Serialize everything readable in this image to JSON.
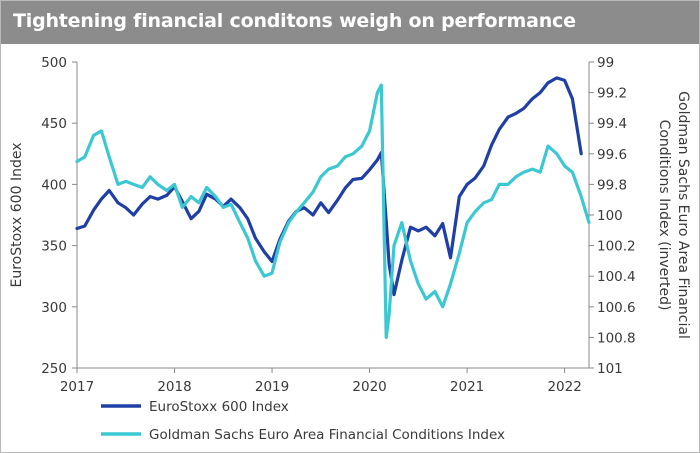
{
  "header": {
    "title": "Tightening financial conditons weigh on performance",
    "background": "#8c8c8c"
  },
  "chart_data": {
    "type": "line",
    "title": "Tightening financial conditons weigh on performance",
    "xlabel": "",
    "ylabel": "EuroStoxx 600 Index",
    "y2label": "Goldman Sachs Euro Area Financial Conditions Index (inverted)",
    "xlim": [
      2017,
      2022.25
    ],
    "ylim": [
      250,
      500
    ],
    "y2lim": [
      101,
      99
    ],
    "y2_inverted": true,
    "x_ticks": [
      "2017",
      "2018",
      "2019",
      "2020",
      "2021",
      "2022"
    ],
    "y_ticks": [
      "250",
      "300",
      "350",
      "400",
      "450",
      "500"
    ],
    "y2_ticks": [
      "99",
      "99.2",
      "99.4",
      "99.6",
      "99.8",
      "100",
      "100.2",
      "100.4",
      "100.6",
      "100.8",
      "101"
    ],
    "legend_position": "bottom",
    "grid": false,
    "series": [
      {
        "name": "EuroStoxx 600 Index",
        "axis": "left",
        "color": "#1f3fa6",
        "x": [
          2017.0,
          2017.08,
          2017.17,
          2017.25,
          2017.33,
          2017.42,
          2017.5,
          2017.58,
          2017.67,
          2017.75,
          2017.83,
          2017.92,
          2018.0,
          2018.08,
          2018.17,
          2018.25,
          2018.33,
          2018.42,
          2018.5,
          2018.58,
          2018.67,
          2018.75,
          2018.83,
          2018.92,
          2019.0,
          2019.08,
          2019.17,
          2019.25,
          2019.33,
          2019.42,
          2019.5,
          2019.58,
          2019.67,
          2019.75,
          2019.83,
          2019.92,
          2020.0,
          2020.08,
          2020.12,
          2020.17,
          2020.2,
          2020.25,
          2020.33,
          2020.42,
          2020.5,
          2020.58,
          2020.67,
          2020.75,
          2020.83,
          2020.92,
          2021.0,
          2021.08,
          2021.17,
          2021.25,
          2021.33,
          2021.42,
          2021.5,
          2021.58,
          2021.67,
          2021.75,
          2021.83,
          2021.92,
          2022.0,
          2022.08,
          2022.17
        ],
        "values": [
          364,
          366,
          379,
          388,
          395,
          385,
          381,
          375,
          384,
          390,
          388,
          391,
          398,
          386,
          372,
          378,
          392,
          388,
          382,
          388,
          381,
          372,
          356,
          345,
          337,
          355,
          370,
          378,
          381,
          375,
          385,
          377,
          387,
          397,
          404,
          405,
          412,
          420,
          426,
          370,
          335,
          310,
          338,
          365,
          362,
          365,
          358,
          368,
          340,
          390,
          400,
          405,
          415,
          432,
          445,
          455,
          458,
          462,
          470,
          475,
          483,
          487,
          485,
          470,
          425
        ]
      },
      {
        "name": "Goldman Sachs Euro Area Financial Conditions Index",
        "axis": "right",
        "color": "#3cc8d2",
        "x": [
          2017.0,
          2017.08,
          2017.17,
          2017.25,
          2017.33,
          2017.42,
          2017.5,
          2017.58,
          2017.67,
          2017.75,
          2017.83,
          2017.92,
          2018.0,
          2018.08,
          2018.17,
          2018.25,
          2018.33,
          2018.42,
          2018.5,
          2018.58,
          2018.67,
          2018.75,
          2018.83,
          2018.92,
          2019.0,
          2019.08,
          2019.17,
          2019.25,
          2019.33,
          2019.42,
          2019.5,
          2019.58,
          2019.67,
          2019.75,
          2019.83,
          2019.92,
          2020.0,
          2020.08,
          2020.12,
          2020.17,
          2020.2,
          2020.25,
          2020.33,
          2020.42,
          2020.5,
          2020.58,
          2020.67,
          2020.75,
          2020.83,
          2020.92,
          2021.0,
          2021.08,
          2021.17,
          2021.25,
          2021.33,
          2021.42,
          2021.5,
          2021.58,
          2021.67,
          2021.75,
          2021.83,
          2021.92,
          2022.0,
          2022.08,
          2022.17,
          2022.25
        ],
        "values": [
          99.65,
          99.62,
          99.48,
          99.45,
          99.62,
          99.8,
          99.78,
          99.8,
          99.82,
          99.75,
          99.8,
          99.84,
          99.8,
          99.95,
          99.88,
          99.92,
          99.82,
          99.88,
          99.95,
          99.93,
          100.05,
          100.15,
          100.3,
          100.4,
          100.38,
          100.18,
          100.05,
          99.98,
          99.92,
          99.85,
          99.75,
          99.7,
          99.68,
          99.62,
          99.6,
          99.55,
          99.45,
          99.2,
          99.15,
          100.8,
          100.65,
          100.2,
          100.05,
          100.3,
          100.45,
          100.55,
          100.5,
          100.6,
          100.45,
          100.25,
          100.05,
          99.98,
          99.92,
          99.9,
          99.8,
          99.8,
          99.75,
          99.72,
          99.7,
          99.72,
          99.55,
          99.6,
          99.68,
          99.72,
          99.88,
          100.05
        ]
      }
    ]
  }
}
